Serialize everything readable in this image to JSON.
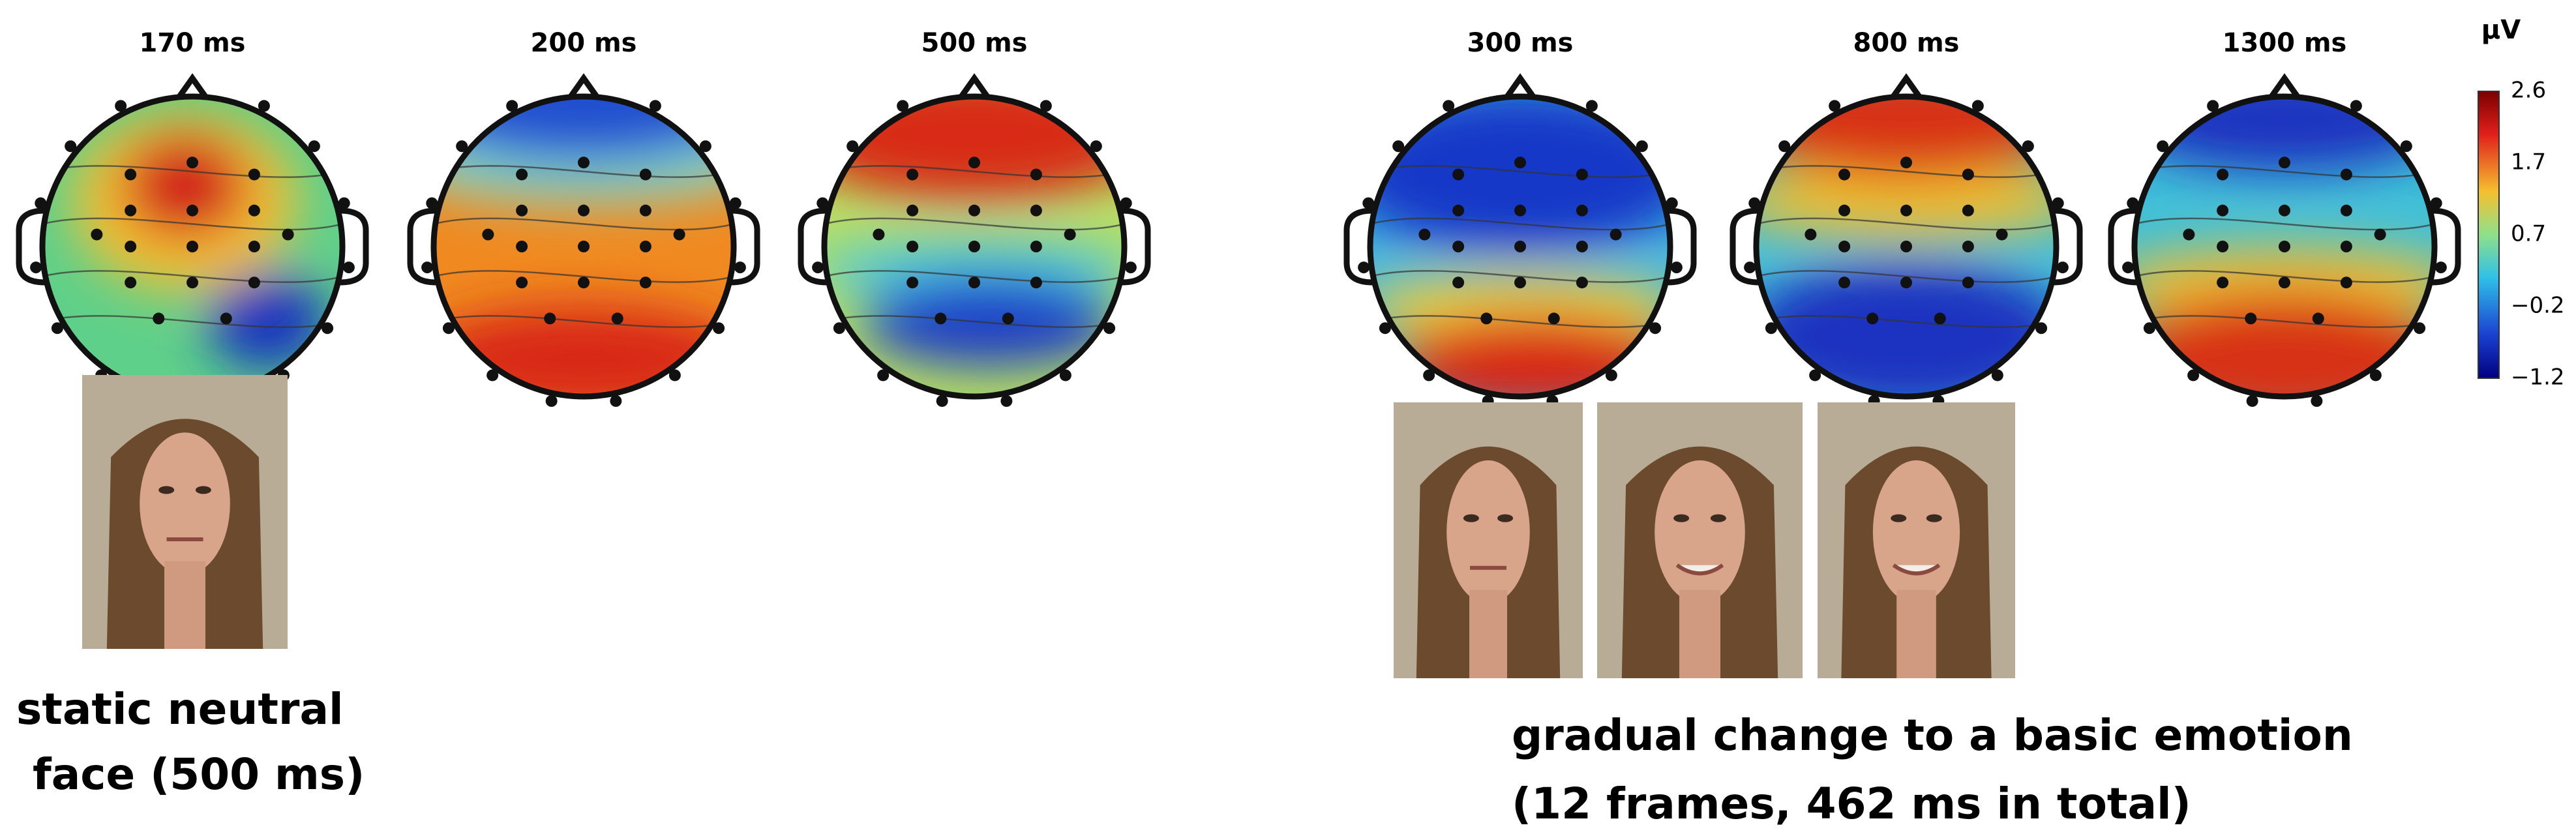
{
  "topomaps": [
    {
      "label": "170 ms"
    },
    {
      "label": "200 ms"
    },
    {
      "label": "500 ms"
    },
    {
      "label": "300 ms"
    },
    {
      "label": "800 ms"
    },
    {
      "label": "1300 ms"
    }
  ],
  "colorbar": {
    "unit": "µV",
    "ticks": [
      "2.6",
      "1.7",
      "0.7",
      "−0.2",
      "−1.2"
    ]
  },
  "captions": {
    "static": [
      "static neutral",
      "face (500 ms)"
    ],
    "dynamic": [
      "gradual change to a basic emotion",
      "(12 frames, 462 ms in total)"
    ]
  }
}
